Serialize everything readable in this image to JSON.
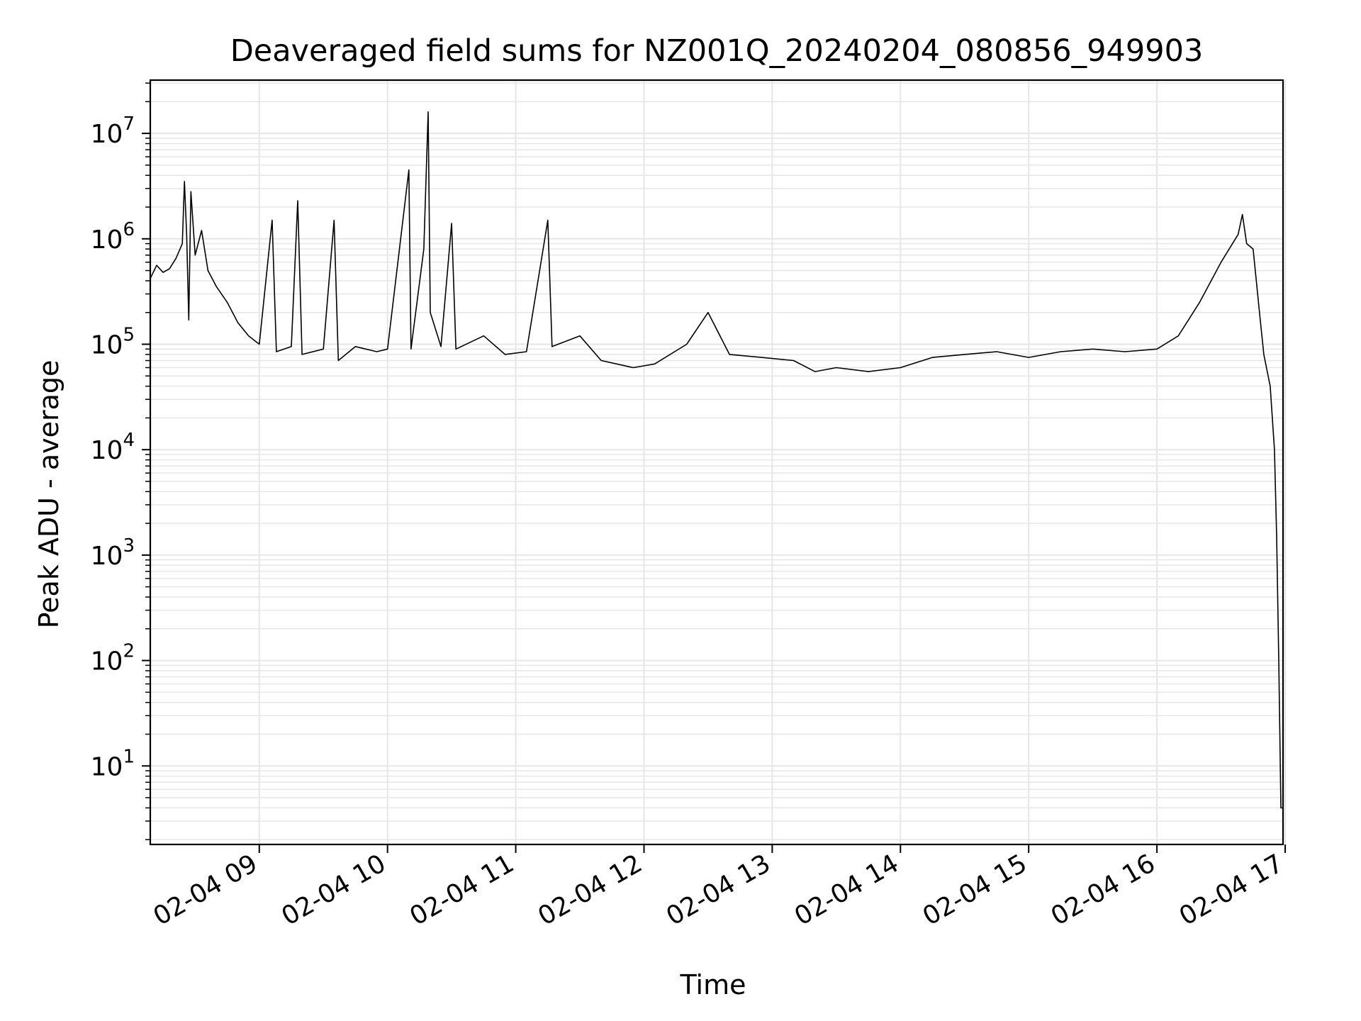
{
  "chart_data": {
    "type": "line",
    "title": "Deaveraged field sums for NZ001Q_20240204_080856_949903",
    "xlabel": "Time",
    "ylabel": "Peak ADU - average",
    "yscale": "log",
    "ylim": [
      1.8,
      32000000.0
    ],
    "xlim": [
      "2024-02-04 08:09",
      "2024-02-04 16:59"
    ],
    "grid": true,
    "line_color": "#000000",
    "grid_color": "#e6e6e6",
    "x_ticks": [
      {
        "time": "2024-02-04 09:00",
        "label": "02-04 09"
      },
      {
        "time": "2024-02-04 10:00",
        "label": "02-04 10"
      },
      {
        "time": "2024-02-04 11:00",
        "label": "02-04 11"
      },
      {
        "time": "2024-02-04 12:00",
        "label": "02-04 12"
      },
      {
        "time": "2024-02-04 13:00",
        "label": "02-04 13"
      },
      {
        "time": "2024-02-04 14:00",
        "label": "02-04 14"
      },
      {
        "time": "2024-02-04 15:00",
        "label": "02-04 15"
      },
      {
        "time": "2024-02-04 16:00",
        "label": "02-04 16"
      },
      {
        "time": "2024-02-04 17:00",
        "label": "02-04 17"
      }
    ],
    "y_ticks": [
      {
        "value": 10,
        "base": "10",
        "exp": "1"
      },
      {
        "value": 100,
        "base": "10",
        "exp": "2"
      },
      {
        "value": 1000,
        "base": "10",
        "exp": "3"
      },
      {
        "value": 10000,
        "base": "10",
        "exp": "4"
      },
      {
        "value": 100000,
        "base": "10",
        "exp": "5"
      },
      {
        "value": 1000000,
        "base": "10",
        "exp": "6"
      },
      {
        "value": 10000000,
        "base": "10",
        "exp": "7"
      }
    ],
    "series": [
      {
        "points": [
          [
            "2024-02-04 08:09",
            420000
          ],
          [
            "2024-02-04 08:12",
            560000
          ],
          [
            "2024-02-04 08:15",
            480000
          ],
          [
            "2024-02-04 08:18",
            520000
          ],
          [
            "2024-02-04 08:21",
            650000
          ],
          [
            "2024-02-04 08:24",
            900000
          ],
          [
            "2024-02-04 08:25",
            3500000
          ],
          [
            "2024-02-04 08:26",
            1100000
          ],
          [
            "2024-02-04 08:27",
            170000
          ],
          [
            "2024-02-04 08:28",
            2800000
          ],
          [
            "2024-02-04 08:30",
            700000
          ],
          [
            "2024-02-04 08:33",
            1200000
          ],
          [
            "2024-02-04 08:36",
            500000
          ],
          [
            "2024-02-04 08:40",
            350000
          ],
          [
            "2024-02-04 08:45",
            250000
          ],
          [
            "2024-02-04 08:50",
            160000
          ],
          [
            "2024-02-04 08:55",
            120000
          ],
          [
            "2024-02-04 09:00",
            100000
          ],
          [
            "2024-02-04 09:06",
            1500000
          ],
          [
            "2024-02-04 09:08",
            85000
          ],
          [
            "2024-02-04 09:15",
            95000
          ],
          [
            "2024-02-04 09:18",
            2300000
          ],
          [
            "2024-02-04 09:20",
            80000
          ],
          [
            "2024-02-04 09:30",
            90000
          ],
          [
            "2024-02-04 09:35",
            1500000
          ],
          [
            "2024-02-04 09:37",
            70000
          ],
          [
            "2024-02-04 09:45",
            95000
          ],
          [
            "2024-02-04 09:55",
            85000
          ],
          [
            "2024-02-04 10:00",
            90000
          ],
          [
            "2024-02-04 10:10",
            4500000
          ],
          [
            "2024-02-04 10:11",
            90000
          ],
          [
            "2024-02-04 10:17",
            800000
          ],
          [
            "2024-02-04 10:19",
            16000000
          ],
          [
            "2024-02-04 10:20",
            200000
          ],
          [
            "2024-02-04 10:25",
            95000
          ],
          [
            "2024-02-04 10:30",
            1400000
          ],
          [
            "2024-02-04 10:32",
            90000
          ],
          [
            "2024-02-04 10:45",
            120000
          ],
          [
            "2024-02-04 10:55",
            80000
          ],
          [
            "2024-02-04 11:05",
            85000
          ],
          [
            "2024-02-04 11:15",
            1500000
          ],
          [
            "2024-02-04 11:17",
            95000
          ],
          [
            "2024-02-04 11:30",
            120000
          ],
          [
            "2024-02-04 11:40",
            70000
          ],
          [
            "2024-02-04 11:55",
            60000
          ],
          [
            "2024-02-04 12:05",
            65000
          ],
          [
            "2024-02-04 12:20",
            100000
          ],
          [
            "2024-02-04 12:30",
            200000
          ],
          [
            "2024-02-04 12:40",
            80000
          ],
          [
            "2024-02-04 12:55",
            75000
          ],
          [
            "2024-02-04 13:10",
            70000
          ],
          [
            "2024-02-04 13:20",
            55000
          ],
          [
            "2024-02-04 13:30",
            60000
          ],
          [
            "2024-02-04 13:45",
            55000
          ],
          [
            "2024-02-04 14:00",
            60000
          ],
          [
            "2024-02-04 14:15",
            75000
          ],
          [
            "2024-02-04 14:30",
            80000
          ],
          [
            "2024-02-04 14:45",
            85000
          ],
          [
            "2024-02-04 15:00",
            75000
          ],
          [
            "2024-02-04 15:15",
            85000
          ],
          [
            "2024-02-04 15:30",
            90000
          ],
          [
            "2024-02-04 15:45",
            85000
          ],
          [
            "2024-02-04 16:00",
            90000
          ],
          [
            "2024-02-04 16:10",
            120000
          ],
          [
            "2024-02-04 16:20",
            250000
          ],
          [
            "2024-02-04 16:30",
            600000
          ],
          [
            "2024-02-04 16:38",
            1100000
          ],
          [
            "2024-02-04 16:40",
            1700000
          ],
          [
            "2024-02-04 16:42",
            900000
          ],
          [
            "2024-02-04 16:45",
            800000
          ],
          [
            "2024-02-04 16:48",
            200000
          ],
          [
            "2024-02-04 16:50",
            80000
          ],
          [
            "2024-02-04 16:53",
            40000
          ],
          [
            "2024-02-04 16:55",
            10000
          ],
          [
            "2024-02-04 16:56",
            1500
          ],
          [
            "2024-02-04 16:57",
            100
          ],
          [
            "2024-02-04 16:58",
            4
          ],
          [
            "2024-02-04 16:59",
            4
          ]
        ]
      }
    ]
  }
}
